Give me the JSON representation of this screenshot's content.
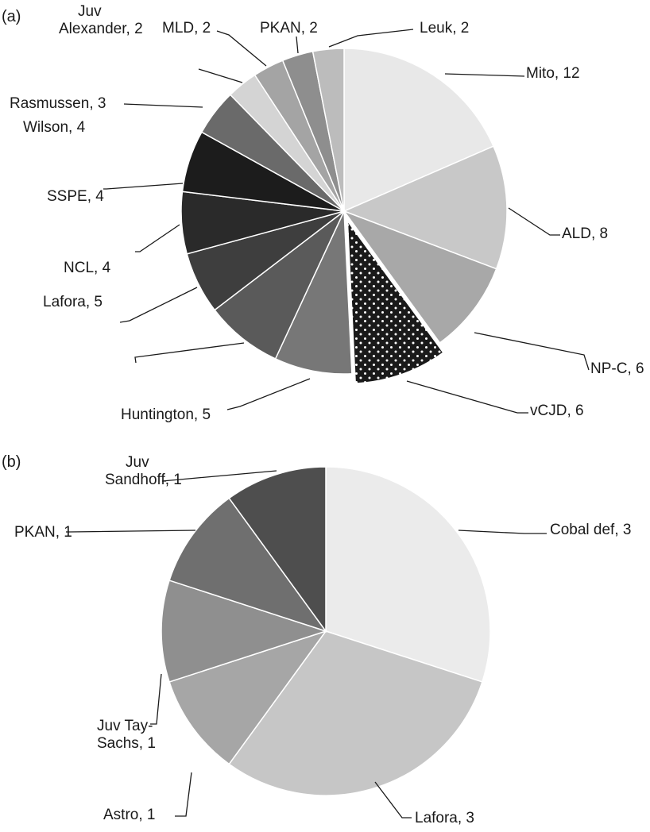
{
  "chart_data": [
    {
      "type": "pie",
      "panel_label": "(a)",
      "slices": [
        {
          "label": [
            "Mito, 12"
          ],
          "value": 12,
          "color": "#e8e8e8"
        },
        {
          "label": [
            "ALD, 8"
          ],
          "value": 8,
          "color": "#c8c8c8"
        },
        {
          "label": [
            "NP-C, 6"
          ],
          "value": 6,
          "color": "#a8a8a8"
        },
        {
          "label": [
            "vCJD, 6"
          ],
          "value": 6,
          "color": "#1a1a1a",
          "pattern": "white-dots",
          "exploded": true
        },
        {
          "label": [
            "Huntington, 5"
          ],
          "value": 5,
          "color": "#777777"
        },
        {
          "label": [
            "Lafora, 5"
          ],
          "value": 5,
          "color": "#5a5a5a"
        },
        {
          "label": [
            "NCL, 4"
          ],
          "value": 4,
          "color": "#3e3e3e"
        },
        {
          "label": [
            "SSPE, 4"
          ],
          "value": 4,
          "color": "#2a2a2a"
        },
        {
          "label": [
            "Wilson, 4"
          ],
          "value": 4,
          "color": "#1c1c1c"
        },
        {
          "label": [
            "Rasmussen, 3"
          ],
          "value": 3,
          "color": "#6a6a6a"
        },
        {
          "label": [
            "Juv",
            "Alexander, 2"
          ],
          "value": 2,
          "color": "#d4d4d4"
        },
        {
          "label": [
            "MLD, 2"
          ],
          "value": 2,
          "color": "#a4a4a4"
        },
        {
          "label": [
            "PKAN, 2"
          ],
          "value": 2,
          "color": "#8e8e8e"
        },
        {
          "label": [
            "Leuk, 2"
          ],
          "value": 2,
          "color": "#bcbcbc"
        }
      ]
    },
    {
      "type": "pie",
      "panel_label": "(b)",
      "slices": [
        {
          "label": [
            "Cobal def, 3"
          ],
          "value": 3,
          "color": "#ebebeb"
        },
        {
          "label": [
            "Lafora, 3"
          ],
          "value": 3,
          "color": "#c6c6c6"
        },
        {
          "label": [
            "Astro, 1"
          ],
          "value": 1,
          "color": "#a6a6a6"
        },
        {
          "label": [
            "Juv Tay-",
            "Sachs, 1"
          ],
          "value": 1,
          "color": "#8f8f8f"
        },
        {
          "label": [
            "PKAN, 1"
          ],
          "value": 1,
          "color": "#6f6f6f"
        },
        {
          "label": [
            "Juv",
            "Sandhoff, 1"
          ],
          "value": 1,
          "color": "#4e4e4e"
        }
      ]
    }
  ]
}
